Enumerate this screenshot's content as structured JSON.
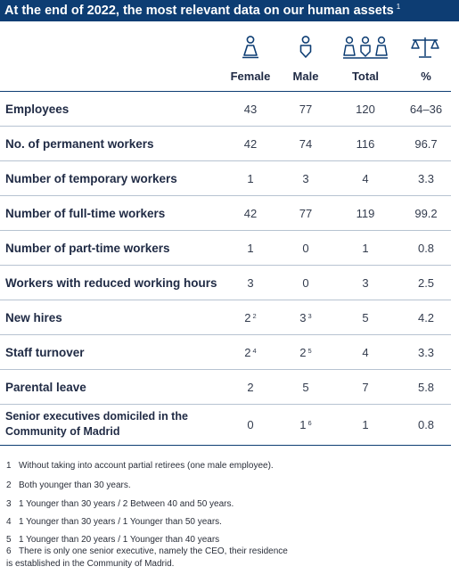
{
  "title": {
    "text": "At the end of 2022, the most relevant data on our human assets",
    "sup": "1"
  },
  "colors": {
    "header_bg": "#0d3d73",
    "rule": "#b7c3d1"
  },
  "columns": [
    {
      "label": "Female",
      "icon": "female-person-icon"
    },
    {
      "label": "Male",
      "icon": "male-person-icon"
    },
    {
      "label": "Total",
      "icon": "group-people-icon"
    },
    {
      "label": "%",
      "icon": "balance-scale-icon"
    }
  ],
  "rows": [
    {
      "label": "Employees",
      "female": "43",
      "male": "77",
      "total": "120",
      "pct": "64–36"
    },
    {
      "label": "No. of permanent workers",
      "female": "42",
      "male": "74",
      "total": "116",
      "pct": "96.7"
    },
    {
      "label": "Number of temporary workers",
      "female": "1",
      "male": "3",
      "total": "4",
      "pct": "3.3"
    },
    {
      "label": "Number of full-time workers",
      "female": "42",
      "male": "77",
      "total": "119",
      "pct": "99.2"
    },
    {
      "label": "Number of part-time workers",
      "female": "1",
      "male": "0",
      "total": "1",
      "pct": "0.8"
    },
    {
      "label": "Workers with reduced working hours",
      "female": "3",
      "male": "0",
      "total": "3",
      "pct": "2.5"
    },
    {
      "label": "New hires",
      "female": "2",
      "female_sup": "2",
      "male": "3",
      "male_sup": "3",
      "total": "5",
      "pct": "4.2"
    },
    {
      "label": "Staff turnover",
      "female": "2",
      "female_sup": "4",
      "male": "2",
      "male_sup": "5",
      "total": "4",
      "pct": "3.3"
    },
    {
      "label": "Parental leave",
      "female": "2",
      "male": "5",
      "total": "7",
      "pct": "5.8"
    },
    {
      "label_line1": "Senior executives domiciled in the",
      "label_line2": "Community of Madrid",
      "female": "0",
      "male": "1",
      "male_sup": "6",
      "total": "1",
      "pct": "0.8"
    }
  ],
  "footnotes": [
    {
      "num": "1",
      "text": "Without taking into account partial retirees (one male employee)."
    },
    {
      "num": "2",
      "text": "Both younger than 30 years."
    },
    {
      "num": "3",
      "text": "1 Younger than 30 years / 2 Between 40 and 50 years."
    },
    {
      "num": "4",
      "text": "1 Younger than 30 years / 1 Younger than 50 years."
    },
    {
      "num": "5",
      "text": "1 Younger than 20 years / 1 Younger than 40 years"
    },
    {
      "num": "6",
      "text": "There is only one senior executive, namely the CEO, their residence",
      "text2": "is established in the Community of Madrid."
    }
  ]
}
